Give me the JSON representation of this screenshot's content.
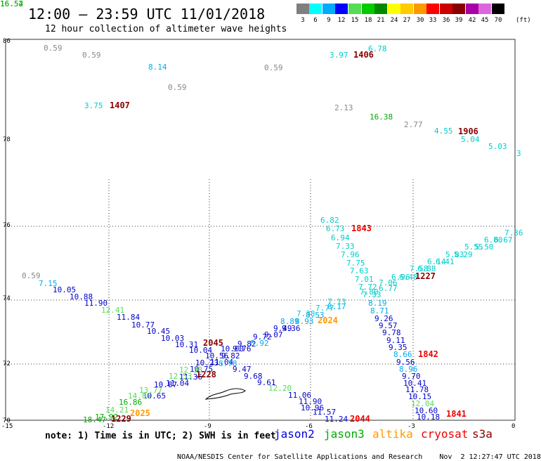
{
  "header": {
    "title": "12:00 — 23:59 UTC 11/01/2018",
    "subtitle": "12 hour collection of altimeter wave heights"
  },
  "legend": {
    "unit": "(ft)",
    "bins": [
      {
        "label": "3",
        "color": "#7f7f7f"
      },
      {
        "label": "6",
        "color": "#00ffff"
      },
      {
        "label": "9",
        "color": "#00aaff"
      },
      {
        "label": "12",
        "color": "#0000ff"
      },
      {
        "label": "15",
        "color": "#55dd55"
      },
      {
        "label": "18",
        "color": "#00cc00"
      },
      {
        "label": "21",
        "color": "#008800"
      },
      {
        "label": "24",
        "color": "#ffff00"
      },
      {
        "label": "27",
        "color": "#ffcc00"
      },
      {
        "label": "30",
        "color": "#ff9900"
      },
      {
        "label": "33",
        "color": "#ff0000"
      },
      {
        "label": "36",
        "color": "#cc0000"
      },
      {
        "label": "39",
        "color": "#880000"
      },
      {
        "label": "42",
        "color": "#aa00aa"
      },
      {
        "label": "45",
        "color": "#dd66dd"
      },
      {
        "label": "70",
        "color": "#000000"
      }
    ]
  },
  "axes": {
    "lat_labels": [
      "80",
      "78",
      "76",
      "74",
      "72",
      "70"
    ],
    "lon_labels": [
      "-15",
      "-12",
      "-9",
      "-6",
      "-3",
      "0"
    ]
  },
  "observations": [
    {
      "v": "0.59",
      "c": "#888888"
    },
    {
      "v": "0.59",
      "c": "#888888"
    },
    {
      "v": "8.14",
      "c": "#00aaee"
    },
    {
      "v": "0.59",
      "c": "#888888"
    },
    {
      "v": "0.59",
      "c": "#888888"
    },
    {
      "v": "3.75",
      "c": "#00cccc"
    },
    {
      "v": "3.97",
      "c": "#00cccc"
    },
    {
      "v": "6.78",
      "c": "#00cccc"
    },
    {
      "v": "2.13",
      "c": "#888888"
    },
    {
      "v": "16.38",
      "c": "#00aa00"
    },
    {
      "v": "2.77",
      "c": "#888888"
    },
    {
      "v": "4.55",
      "c": "#00cccc"
    },
    {
      "v": "5.04",
      "c": "#00cccc"
    },
    {
      "v": "5.03",
      "c": "#00cccc"
    },
    {
      "v": "3",
      "c": "#00cccc"
    },
    {
      "v": "6.82",
      "c": "#00cccc"
    },
    {
      "v": "6.73",
      "c": "#00cccc"
    },
    {
      "v": "6.94",
      "c": "#00cccc"
    },
    {
      "v": "7.33",
      "c": "#00cccc"
    },
    {
      "v": "7.96",
      "c": "#00cccc"
    },
    {
      "v": "7.75",
      "c": "#00cccc"
    },
    {
      "v": "7.63",
      "c": "#00cccc"
    },
    {
      "v": "7.01",
      "c": "#00cccc"
    },
    {
      "v": "7.72",
      "c": "#00cccc"
    },
    {
      "v": "7.80",
      "c": "#00cccc"
    },
    {
      "v": "7.33",
      "c": "#00cccc"
    },
    {
      "v": "7.06",
      "c": "#00cccc"
    },
    {
      "v": "6.77",
      "c": "#00cccc"
    },
    {
      "v": "6.96",
      "c": "#00cccc"
    },
    {
      "v": "6.48",
      "c": "#00cccc"
    },
    {
      "v": "7.58",
      "c": "#00cccc"
    },
    {
      "v": "6.88",
      "c": "#00cccc"
    },
    {
      "v": "6.14",
      "c": "#00cccc"
    },
    {
      "v": "6.41",
      "c": "#00cccc"
    },
    {
      "v": "5.83",
      "c": "#00cccc"
    },
    {
      "v": "5.29",
      "c": "#00cccc"
    },
    {
      "v": "5.55",
      "c": "#00cccc"
    },
    {
      "v": "5.50",
      "c": "#00cccc"
    },
    {
      "v": "6.80",
      "c": "#00cccc"
    },
    {
      "v": "6.67",
      "c": "#00cccc"
    },
    {
      "v": "7.36",
      "c": "#00cccc"
    },
    {
      "v": "7.13",
      "c": "#00cccc"
    },
    {
      "v": "8.17",
      "c": "#00aaee"
    },
    {
      "v": "7.77",
      "c": "#00cccc"
    },
    {
      "v": "7.38",
      "c": "#00cccc"
    },
    {
      "v": "8.53",
      "c": "#00aaee"
    },
    {
      "v": "8.89",
      "c": "#00aaee"
    },
    {
      "v": "8.93",
      "c": "#00aaee"
    },
    {
      "v": "8.19",
      "c": "#00aaee"
    },
    {
      "v": "8.71",
      "c": "#00aaee"
    },
    {
      "v": "9.26",
      "c": "#0000cc"
    },
    {
      "v": "9.57",
      "c": "#0000cc"
    },
    {
      "v": "9.78",
      "c": "#0000cc"
    },
    {
      "v": "9.11",
      "c": "#0000cc"
    },
    {
      "v": "9.35",
      "c": "#0000cc"
    },
    {
      "v": "8.66",
      "c": "#00aaee"
    },
    {
      "v": "9.56",
      "c": "#0000cc"
    },
    {
      "v": "8.96",
      "c": "#00aaee"
    },
    {
      "v": "9.70",
      "c": "#0000cc"
    },
    {
      "v": "10.41",
      "c": "#0000cc"
    },
    {
      "v": "11.78",
      "c": "#0000cc"
    },
    {
      "v": "10.15",
      "c": "#0000cc"
    },
    {
      "v": "12.04",
      "c": "#55dd55"
    },
    {
      "v": "10.60",
      "c": "#0000cc"
    },
    {
      "v": "10.18",
      "c": "#0000cc"
    },
    {
      "v": "0.59",
      "c": "#888888"
    },
    {
      "v": "7.15",
      "c": "#00aaee"
    },
    {
      "v": "10.05",
      "c": "#0000cc"
    },
    {
      "v": "10.88",
      "c": "#0000cc"
    },
    {
      "v": "11.90",
      "c": "#0000cc"
    },
    {
      "v": "12.41",
      "c": "#55dd55"
    },
    {
      "v": "11.84",
      "c": "#0000cc"
    },
    {
      "v": "10.77",
      "c": "#0000cc"
    },
    {
      "v": "10.45",
      "c": "#0000cc"
    },
    {
      "v": "10.03",
      "c": "#0000cc"
    },
    {
      "v": "10.31",
      "c": "#0000cc"
    },
    {
      "v": "10.04",
      "c": "#0000cc"
    },
    {
      "v": "10.00",
      "c": "#0000cc"
    },
    {
      "v": "9.76",
      "c": "#0000cc"
    },
    {
      "v": "9.82",
      "c": "#0000cc"
    },
    {
      "v": "8.92",
      "c": "#00aaee"
    },
    {
      "v": "9.72",
      "c": "#0000cc"
    },
    {
      "v": "9.07",
      "c": "#0000cc"
    },
    {
      "v": "9.49",
      "c": "#0000cc"
    },
    {
      "v": "9.36",
      "c": "#0000cc"
    },
    {
      "v": "10.56",
      "c": "#0000cc"
    },
    {
      "v": "9.82",
      "c": "#0000cc"
    },
    {
      "v": "11.04",
      "c": "#0000cc"
    },
    {
      "v": "10.23",
      "c": "#0000cc"
    },
    {
      "v": "8.78",
      "c": "#00aaee"
    },
    {
      "v": "9.47",
      "c": "#0000cc"
    },
    {
      "v": "9.68",
      "c": "#0000cc"
    },
    {
      "v": "9.61",
      "c": "#0000cc"
    },
    {
      "v": "12.20",
      "c": "#55dd55"
    },
    {
      "v": "11.06",
      "c": "#0000cc"
    },
    {
      "v": "11.90",
      "c": "#0000cc"
    },
    {
      "v": "10.96",
      "c": "#0000cc"
    },
    {
      "v": "11.57",
      "c": "#0000cc"
    },
    {
      "v": "11.24",
      "c": "#0000cc"
    },
    {
      "v": "10.75",
      "c": "#0000cc"
    },
    {
      "v": "12.38",
      "c": "#55dd55"
    },
    {
      "v": "11.36",
      "c": "#0000cc"
    },
    {
      "v": "12.53",
      "c": "#55dd55"
    },
    {
      "v": "11.04",
      "c": "#0000cc"
    },
    {
      "v": "10.87",
      "c": "#0000cc"
    },
    {
      "v": "13.77",
      "c": "#55dd55"
    },
    {
      "v": "10.65",
      "c": "#0000cc"
    },
    {
      "v": "14.86",
      "c": "#55dd55"
    },
    {
      "v": "16.86",
      "c": "#00aa00"
    },
    {
      "v": "14.21",
      "c": "#55dd55"
    },
    {
      "v": "17.92",
      "c": "#00aa00"
    },
    {
      "v": "18.47",
      "c": "#00aa00"
    },
    {
      "v": "16.54",
      "c": "#00aa00"
    },
    {
      "v": "16.52",
      "c": "#00aa00"
    }
  ],
  "time_labels": [
    {
      "v": "1406",
      "c": "#880000"
    },
    {
      "v": "1407",
      "c": "#880000"
    },
    {
      "v": "1906",
      "c": "#880000"
    },
    {
      "v": "1843",
      "c": "#ee0000"
    },
    {
      "v": "1227",
      "c": "#880000"
    },
    {
      "v": "2024",
      "c": "#ff9900"
    },
    {
      "v": "1842",
      "c": "#ee0000"
    },
    {
      "v": "2045",
      "c": "#880000"
    },
    {
      "v": "1228",
      "c": "#880000"
    },
    {
      "v": "2025",
      "c": "#ff9900"
    },
    {
      "v": "1229",
      "c": "#880000"
    },
    {
      "v": "2044",
      "c": "#ee0000"
    },
    {
      "v": "1841",
      "c": "#ee0000"
    }
  ],
  "footer": {
    "note": "note: 1) Time is in UTC; 2) SWH is in feet",
    "satellites": [
      {
        "name": "jason2",
        "color": "#0000dd"
      },
      {
        "name": "jason3",
        "color": "#00aa00"
      },
      {
        "name": "altika",
        "color": "#ff9900"
      },
      {
        "name": "cryosat",
        "color": "#ee0000"
      },
      {
        "name": "s3a",
        "color": "#880000"
      }
    ],
    "credit": "NOAA/NESDIS Center for Satellite Applications and Research",
    "timestamp": "Nov  2 12:27:47 UTC 2018"
  }
}
